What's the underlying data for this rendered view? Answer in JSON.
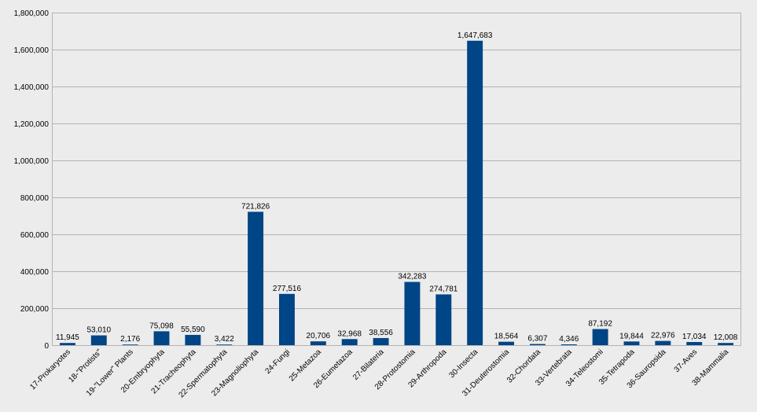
{
  "chart_data": {
    "type": "bar",
    "title": "",
    "xlabel": "",
    "ylabel": "",
    "ylim": [
      0,
      1800000
    ],
    "yticks": [
      0,
      200000,
      400000,
      600000,
      800000,
      1000000,
      1200000,
      1400000,
      1600000,
      1800000
    ],
    "ytick_labels": [
      "0",
      "200,000",
      "400,000",
      "600,000",
      "800,000",
      "1,000,000",
      "1,200,000",
      "1,400,000",
      "1,600,000",
      "1,800,000"
    ],
    "grid": true,
    "legend": "none",
    "colors": {
      "bar": "#004586",
      "grid": "#b3b3b3",
      "background": "#ececec"
    },
    "categories": [
      "17-Prokaryotes",
      "18-\"Protists\"",
      "19-\"Lower\" Plants",
      "20-Embryophyta",
      "21-Tracheophyta",
      "22-Spermatophyta",
      "23-Magnoliophyta",
      "24-Fungi",
      "25-Metazoa",
      "26-Eumetazoa",
      "27-Bilateria",
      "28-Protostomia",
      "29-Arthropoda",
      "30-Insecta",
      "31-Deuterostomia",
      "32-Chordata",
      "33-Vertebrata",
      "34-Teleostomi",
      "35-Tetrapoda",
      "36-Sauropsida",
      "37-Aves",
      "38-Mammalia"
    ],
    "values": [
      11945,
      53010,
      2176,
      75098,
      55590,
      3422,
      721826,
      277516,
      20706,
      32968,
      38556,
      342283,
      274781,
      1647683,
      18564,
      6307,
      4346,
      87192,
      19844,
      22976,
      17034,
      12008
    ],
    "value_labels": [
      "11,945",
      "53,010",
      "2,176",
      "75,098",
      "55,590",
      "3,422",
      "721,826",
      "277,516",
      "20,706",
      "32,968",
      "38,556",
      "342,283",
      "274,781",
      "1,647,683",
      "18,564",
      "6,307",
      "4,346",
      "87,192",
      "19,844",
      "22,976",
      "17,034",
      "12,008"
    ]
  }
}
